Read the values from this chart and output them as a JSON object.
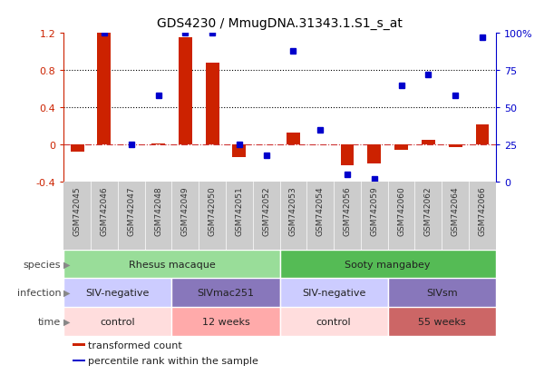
{
  "title": "GDS4230 / MmugDNA.31343.1.S1_s_at",
  "samples": [
    "GSM742045",
    "GSM742046",
    "GSM742047",
    "GSM742048",
    "GSM742049",
    "GSM742050",
    "GSM742051",
    "GSM742052",
    "GSM742053",
    "GSM742054",
    "GSM742056",
    "GSM742059",
    "GSM742060",
    "GSM742062",
    "GSM742064",
    "GSM742066"
  ],
  "bar_values": [
    -0.08,
    1.2,
    0.0,
    0.01,
    1.15,
    0.88,
    -0.13,
    0.0,
    0.13,
    0.0,
    -0.22,
    -0.2,
    -0.06,
    0.05,
    -0.03,
    0.22
  ],
  "dot_percentiles": [
    null,
    100,
    25,
    58,
    100,
    100,
    25,
    18,
    88,
    35,
    5,
    2,
    65,
    72,
    58,
    97
  ],
  "ylim": [
    -0.4,
    1.2
  ],
  "y2lim": [
    0,
    100
  ],
  "yticks": [
    -0.4,
    0.0,
    0.4,
    0.8,
    1.2
  ],
  "ytick_labels": [
    "-0.4",
    "0",
    "0.4",
    "0.8",
    "1.2"
  ],
  "y2ticks": [
    0,
    25,
    50,
    75,
    100
  ],
  "y2tick_labels": [
    "0",
    "25",
    "50",
    "75",
    "100%"
  ],
  "hlines": [
    0.4,
    0.8
  ],
  "bar_color": "#cc2200",
  "dot_color": "#0000cc",
  "zero_line_color": "#cc3333",
  "xlabels_bg": "#cccccc",
  "species_row": [
    {
      "label": "Rhesus macaque",
      "start": 0,
      "end": 8,
      "color": "#99dd99"
    },
    {
      "label": "Sooty mangabey",
      "start": 8,
      "end": 16,
      "color": "#55bb55"
    }
  ],
  "infection_row": [
    {
      "label": "SIV-negative",
      "start": 0,
      "end": 4,
      "color": "#ccccff"
    },
    {
      "label": "SIVmac251",
      "start": 4,
      "end": 8,
      "color": "#8877bb"
    },
    {
      "label": "SIV-negative",
      "start": 8,
      "end": 12,
      "color": "#ccccff"
    },
    {
      "label": "SIVsm",
      "start": 12,
      "end": 16,
      "color": "#8877bb"
    }
  ],
  "time_row": [
    {
      "label": "control",
      "start": 0,
      "end": 4,
      "color": "#ffdddd"
    },
    {
      "label": "12 weeks",
      "start": 4,
      "end": 8,
      "color": "#ffaaaa"
    },
    {
      "label": "control",
      "start": 8,
      "end": 12,
      "color": "#ffdddd"
    },
    {
      "label": "55 weeks",
      "start": 12,
      "end": 16,
      "color": "#cc6666"
    }
  ],
  "legend_items": [
    {
      "label": "transformed count",
      "color": "#cc2200"
    },
    {
      "label": "percentile rank within the sample",
      "color": "#0000cc"
    }
  ],
  "row_labels": [
    "species",
    "infection",
    "time"
  ],
  "background_color": "#ffffff"
}
